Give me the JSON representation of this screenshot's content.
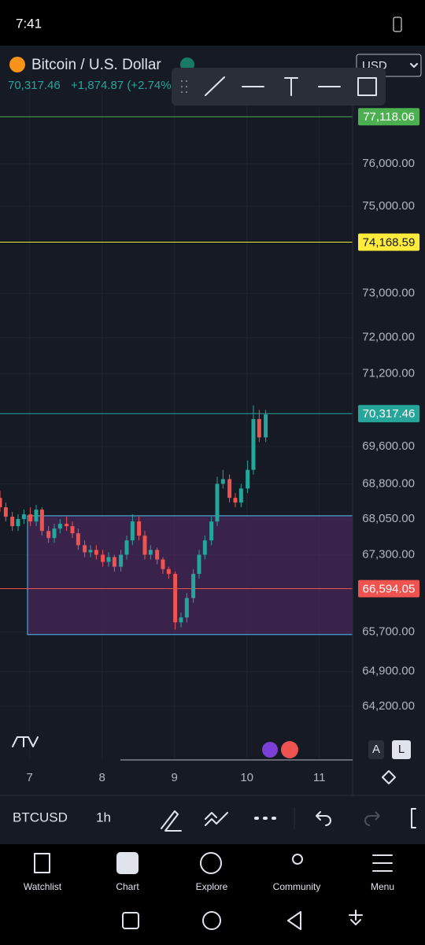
{
  "status_bar": {
    "time": "7:41"
  },
  "header": {
    "title": "Bitcoin / U.S. Dollar",
    "price": "70,317.46",
    "change": "+1,874.87 (+2.74%)",
    "currency": "USD"
  },
  "chart_data": {
    "type": "candlestick",
    "log_scale": true,
    "grid": true,
    "x": [
      6.59,
      6.67,
      6.76,
      6.84,
      6.92,
      7.01,
      7.09,
      7.17,
      7.26,
      7.34,
      7.42,
      7.51,
      7.59,
      7.67,
      7.76,
      7.84,
      7.92,
      8.01,
      8.09,
      8.17,
      8.26,
      8.34,
      8.42,
      8.51,
      8.59,
      8.67,
      8.76,
      8.84,
      8.92,
      9.01,
      9.09,
      9.17,
      9.26,
      9.34,
      9.42,
      9.51,
      9.59,
      9.67,
      9.76,
      9.84,
      9.92,
      10.01,
      10.09,
      10.17,
      10.26
    ],
    "open": [
      68500,
      68300,
      68100,
      67900,
      68050,
      68150,
      68000,
      68250,
      67800,
      67650,
      67850,
      67950,
      67900,
      67750,
      67500,
      67350,
      67400,
      67300,
      67150,
      67250,
      67050,
      67300,
      67600,
      68000,
      67700,
      67300,
      67400,
      67200,
      67000,
      66900,
      65900,
      66000,
      66400,
      66900,
      67300,
      67600,
      68000,
      68800,
      68900,
      68500,
      68400,
      68700,
      69100,
      70200,
      69800
    ],
    "high": [
      68650,
      68400,
      68200,
      68150,
      68250,
      68300,
      68350,
      68300,
      67900,
      67950,
      68050,
      68100,
      68000,
      67850,
      67600,
      67500,
      67500,
      67400,
      67350,
      67300,
      67400,
      67700,
      68150,
      68100,
      67800,
      67500,
      67450,
      67250,
      67050,
      66950,
      66100,
      66500,
      67000,
      67400,
      67700,
      68100,
      68950,
      69100,
      69000,
      68600,
      68800,
      69300,
      70500,
      70400,
      70400
    ],
    "low": [
      68200,
      68000,
      67800,
      67800,
      67950,
      67900,
      67900,
      67700,
      67550,
      67550,
      67750,
      67800,
      67650,
      67400,
      67250,
      67250,
      67200,
      67050,
      67050,
      66950,
      66950,
      67200,
      67500,
      67600,
      67200,
      67200,
      67100,
      66900,
      66800,
      65750,
      65800,
      65900,
      66300,
      66800,
      67200,
      67500,
      67900,
      68700,
      68400,
      68300,
      68300,
      68600,
      69000,
      69700,
      69700
    ],
    "close": [
      68300,
      68100,
      67900,
      68050,
      68150,
      68000,
      68250,
      67800,
      67650,
      67850,
      67950,
      67900,
      67750,
      67500,
      67350,
      67400,
      67300,
      67150,
      67250,
      67050,
      67300,
      67600,
      68000,
      67700,
      67300,
      67400,
      67200,
      67000,
      66900,
      65900,
      66000,
      66400,
      66900,
      67300,
      67600,
      68000,
      68800,
      68900,
      68500,
      68400,
      68700,
      69100,
      70200,
      69800,
      70300
    ],
    "up_color": "#26a69a",
    "down_color": "#ef5350",
    "xlim": [
      6.59,
      11.46
    ],
    "xticks": [
      7,
      8,
      9,
      10,
      11
    ],
    "ylim": [
      63140,
      78130
    ],
    "yticks": [
      {
        "value": 64200,
        "label": "64,200.00"
      },
      {
        "value": 64900,
        "label": "64,900.00"
      },
      {
        "value": 65700,
        "label": "65,700.00"
      },
      {
        "value": 67300,
        "label": "67,300.00"
      },
      {
        "value": 68050,
        "label": "68,050.00"
      },
      {
        "value": 68800,
        "label": "68,800.00"
      },
      {
        "value": 69600,
        "label": "69,600.00"
      },
      {
        "value": 71200,
        "label": "71,200.00"
      },
      {
        "value": 72000,
        "label": "72,000.00"
      },
      {
        "value": 73000,
        "label": "73,000.00"
      },
      {
        "value": 75000,
        "label": "75,000.00"
      },
      {
        "value": 76000,
        "label": "76,000.00"
      }
    ],
    "zone": {
      "x": [
        6.97,
        11.46
      ],
      "y": [
        65650,
        68120
      ]
    },
    "price_lines": [
      {
        "value": 77118.06,
        "label": "77,118.06",
        "color": "#4caf50"
      },
      {
        "value": 74168.59,
        "label": "74,168.59",
        "color": "#ffeb3b"
      },
      {
        "value": 70317.46,
        "label": "70,317.46",
        "color": "#26a69a"
      },
      {
        "value": 66594.05,
        "label": "66,594.05",
        "color": "#ef5350"
      }
    ]
  },
  "scale_buttons": [
    "A",
    "L"
  ],
  "toolbar": {
    "symbol": "BTCUSD",
    "interval": "1h"
  },
  "nav": [
    "Watchlist",
    "Chart",
    "Explore",
    "Community",
    "Menu"
  ]
}
